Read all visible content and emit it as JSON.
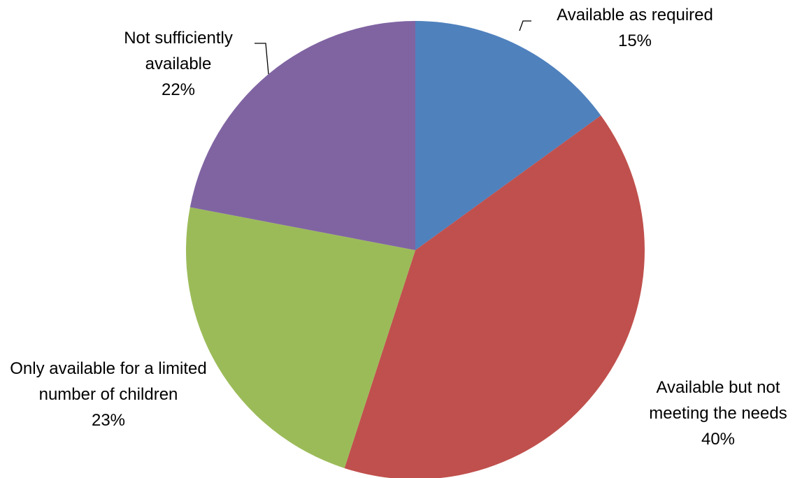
{
  "chart_data": {
    "type": "pie",
    "categories": [
      "Available as required",
      "Available but not meeting the needs",
      "Only available for a limited number of children",
      "Not sufficiently available"
    ],
    "values": [
      15,
      40,
      23,
      22
    ],
    "value_labels": [
      "15%",
      "40%",
      "23%",
      "22%"
    ],
    "colors": [
      "#4f81bd",
      "#c0504d",
      "#9bbb59",
      "#8064a2"
    ]
  }
}
